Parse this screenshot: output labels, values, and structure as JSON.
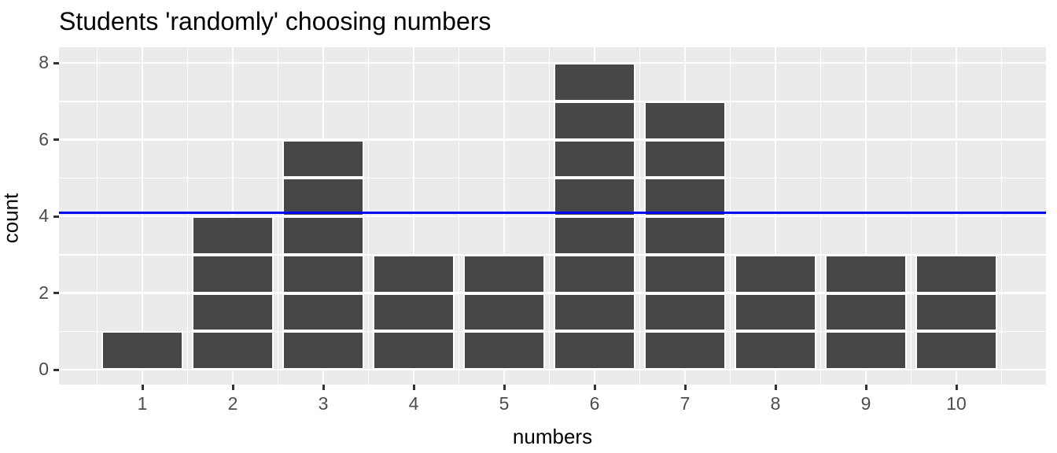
{
  "title": "Students 'randomly' choosing numbers",
  "chart_data": {
    "type": "bar",
    "title": "Students 'randomly' choosing numbers",
    "xlabel": "numbers",
    "ylabel": "count",
    "categories": [
      1,
      2,
      3,
      4,
      5,
      6,
      7,
      8,
      9,
      10
    ],
    "values": [
      1,
      4,
      6,
      3,
      3,
      8,
      7,
      3,
      3,
      3
    ],
    "x_ticks": [
      1,
      2,
      3,
      4,
      5,
      6,
      7,
      8,
      9,
      10
    ],
    "y_ticks": [
      0,
      2,
      4,
      6,
      8
    ],
    "y_minor_ticks": [
      1,
      3,
      5,
      7
    ],
    "x_minor_positions": [
      0.5,
      1.5,
      2.5,
      3.5,
      4.5,
      5.5,
      6.5,
      7.5,
      8.5,
      9.5,
      10.5
    ],
    "xlim": [
      0.055,
      10.945
    ],
    "ylim": [
      -0.4,
      8.4
    ],
    "bar_width": 0.9,
    "segment_unit": 1,
    "hline": {
      "y": 4.1,
      "color": "#0000ff"
    },
    "legend": null,
    "style": {
      "bar_fill": "#474747",
      "bar_outline": "#ffffff",
      "panel_bg": "#ebebeb",
      "grid_major_color": "#ffffff",
      "grid_minor_color": "#ffffff",
      "tick_color": "#333333",
      "tick_label_color": "#4d4d4d",
      "title_color": "#000000",
      "axis_title_color": "#000000",
      "plot_bg": "#ffffff"
    }
  }
}
